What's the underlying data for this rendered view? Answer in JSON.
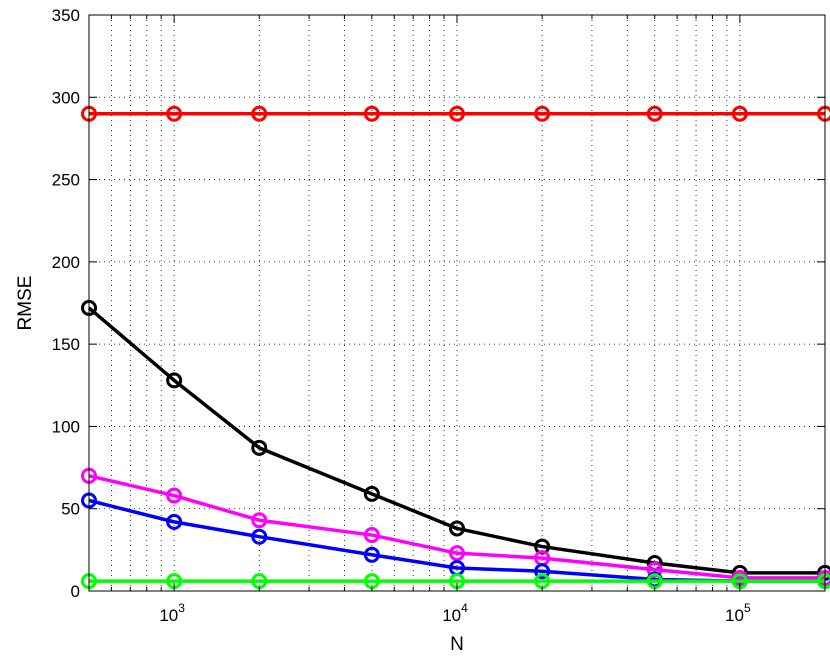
{
  "chart_data": {
    "type": "line",
    "xlabel": "N",
    "ylabel": "RMSE",
    "xscale": "log",
    "xlim": [
      500,
      200000
    ],
    "ylim": [
      0,
      350
    ],
    "grid": true,
    "grid_style": "dotted",
    "marker": "circle",
    "x": [
      500,
      1000,
      2000,
      5000,
      10000,
      20000,
      50000,
      100000,
      200000
    ],
    "xticks": [
      {
        "value": 1000,
        "base": "10",
        "exp": "3"
      },
      {
        "value": 10000,
        "base": "10",
        "exp": "4"
      },
      {
        "value": 100000,
        "base": "10",
        "exp": "5"
      }
    ],
    "yticks": [
      0,
      50,
      100,
      150,
      200,
      250,
      300,
      350
    ],
    "series": [
      {
        "color": "#ff0000",
        "values": [
          290,
          290,
          290,
          290,
          290,
          290,
          290,
          290,
          290
        ]
      },
      {
        "color": "#000000",
        "values": [
          172,
          128,
          87,
          59,
          38,
          27,
          17,
          11,
          11
        ]
      },
      {
        "color": "#ff00ff",
        "values": [
          70,
          58,
          43,
          34,
          23,
          20,
          13,
          8,
          8
        ]
      },
      {
        "color": "#0000ff",
        "values": [
          55,
          42,
          33,
          22,
          14,
          12,
          7,
          6,
          6
        ]
      },
      {
        "color": "#00ff00",
        "values": [
          6,
          6,
          6,
          6,
          6,
          6,
          6,
          6,
          6
        ]
      }
    ]
  }
}
